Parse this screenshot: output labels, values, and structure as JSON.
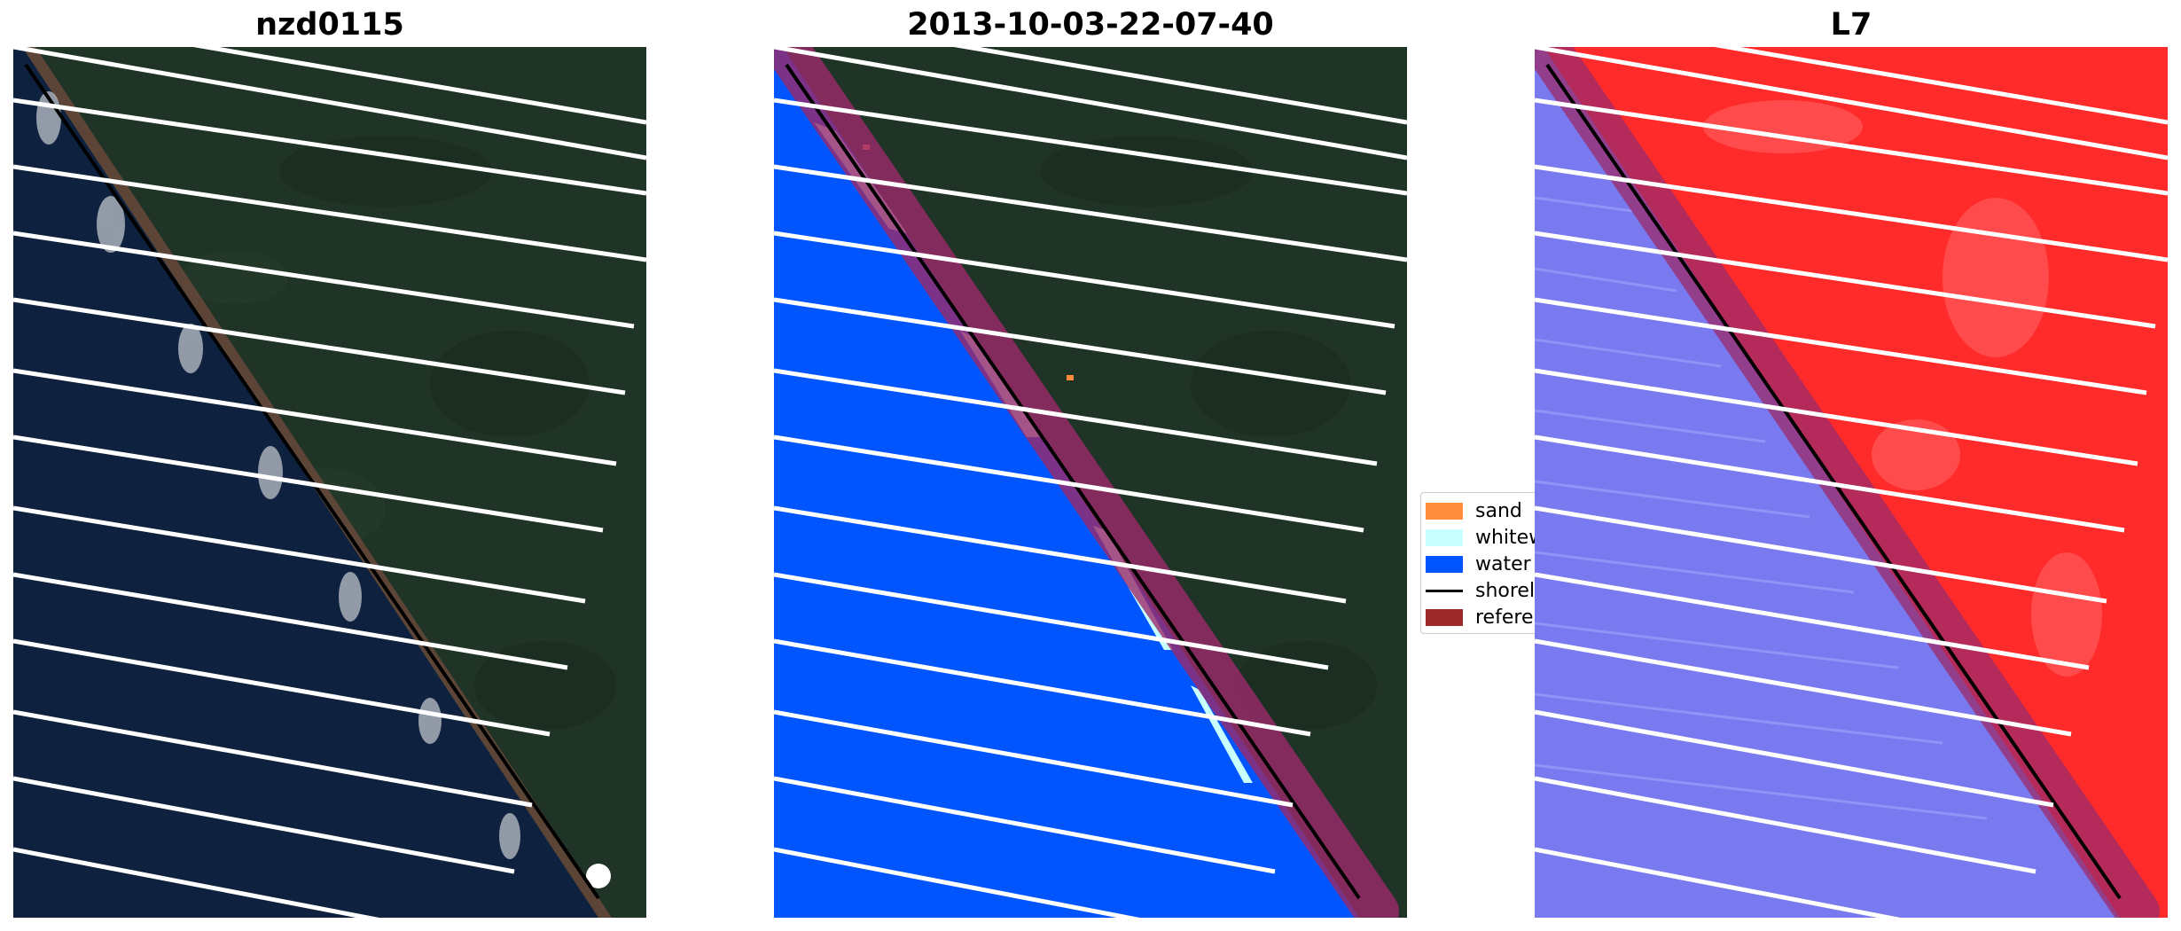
{
  "panels": [
    {
      "title": "nzd0115"
    },
    {
      "title": "2013-10-03-22-07-40"
    },
    {
      "title": "L7"
    }
  ],
  "legend": {
    "items": [
      {
        "label": "sand",
        "color": "#ff8c3a",
        "kind": "patch"
      },
      {
        "label": "whitewater",
        "color": "#c8ffff",
        "kind": "patch"
      },
      {
        "label": "water",
        "color": "#0055ff",
        "kind": "patch"
      },
      {
        "label": "shoreline",
        "color": "#000000",
        "kind": "line"
      },
      {
        "label": "reference",
        "color": "#9c2a2a",
        "kind": "patch"
      }
    ]
  },
  "colors": {
    "land": "#1f3326",
    "sea": "#0e213e",
    "water_class": "#0055ff",
    "land_prob": "#ff2a2a",
    "water_prob": "#7a7af0",
    "reference_band": "#9c2a6a",
    "shoreline": "#000000",
    "scanline_gap": "#ffffff"
  }
}
